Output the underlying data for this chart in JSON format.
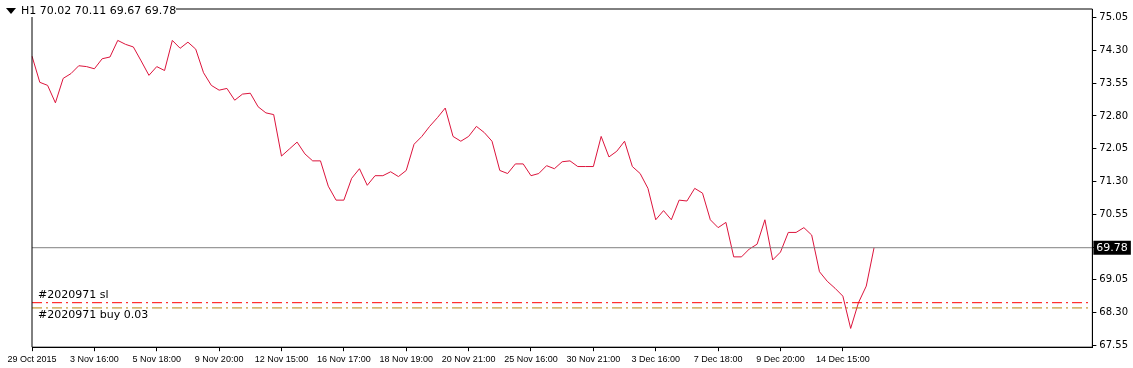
{
  "chart_data": {
    "type": "line",
    "title": "H1  70.02 70.11 69.67 69.78",
    "categories": [
      "29 Oct 2015",
      null,
      null,
      null,
      null,
      null,
      null,
      null,
      "3 Nov 16:00",
      null,
      null,
      null,
      null,
      null,
      null,
      null,
      "5 Nov 18:00",
      null,
      null,
      null,
      null,
      null,
      null,
      null,
      "9 Nov 20:00",
      null,
      null,
      null,
      null,
      null,
      null,
      null,
      "12 Nov 15:00",
      null,
      null,
      null,
      null,
      null,
      null,
      null,
      "16 Nov 17:00",
      null,
      null,
      null,
      null,
      null,
      null,
      null,
      "18 Nov 19:00",
      null,
      null,
      null,
      null,
      null,
      null,
      null,
      "20 Nov 21:00",
      null,
      null,
      null,
      null,
      null,
      null,
      null,
      "25 Nov 16:00",
      null,
      null,
      null,
      null,
      null,
      null,
      null,
      "30 Nov 21:00",
      null,
      null,
      null,
      null,
      null,
      null,
      null,
      "3 Dec 16:00",
      null,
      null,
      null,
      null,
      null,
      null,
      null,
      "7 Dec 18:00",
      null,
      null,
      null,
      null,
      null,
      null,
      null,
      "9 Dec 20:00",
      null,
      null,
      null,
      null,
      null,
      null,
      null,
      "14 Dec 15:00",
      null,
      null,
      null,
      null,
      null,
      null,
      null,
      null,
      null,
      null,
      null,
      null,
      null,
      null,
      null,
      null,
      null,
      null,
      null,
      null,
      null,
      null,
      null,
      null,
      null,
      null,
      null,
      null,
      null,
      null,
      null,
      null
    ],
    "series": [
      {
        "color": "#dc143c",
        "values": [
          74.17,
          73.57,
          73.5,
          73.1,
          73.66,
          73.77,
          73.95,
          73.93,
          73.88,
          74.11,
          74.15,
          74.53,
          74.44,
          74.38,
          74.06,
          73.73,
          73.93,
          73.84,
          74.53,
          74.35,
          74.49,
          74.33,
          73.79,
          73.5,
          73.39,
          73.43,
          73.16,
          73.3,
          73.32,
          73.01,
          72.87,
          72.83,
          71.88,
          72.04,
          72.2,
          71.93,
          71.77,
          71.77,
          71.19,
          70.87,
          70.87,
          71.37,
          71.59,
          71.21,
          71.43,
          71.43,
          71.52,
          71.41,
          71.55,
          72.15,
          72.33,
          72.56,
          72.76,
          72.98,
          72.33,
          72.22,
          72.33,
          72.56,
          72.42,
          72.22,
          71.55,
          71.48,
          71.7,
          71.7,
          71.43,
          71.48,
          71.66,
          71.59,
          71.75,
          71.77,
          71.64,
          71.64,
          71.64,
          72.33,
          71.86,
          71.99,
          72.22,
          71.64,
          71.48,
          71.14,
          70.42,
          70.63,
          70.42,
          70.87,
          70.85,
          71.14,
          71.03,
          70.42,
          70.24,
          70.36,
          69.57,
          69.57,
          69.75,
          69.86,
          70.42,
          69.5,
          69.68,
          70.13,
          70.13,
          70.24,
          70.07,
          69.23,
          69.01,
          68.85,
          68.67,
          67.93,
          68.52,
          68.9,
          69.78,
          null,
          null,
          null,
          null,
          null,
          null,
          null,
          null,
          null,
          null,
          null,
          null,
          null,
          null,
          null,
          null,
          null,
          null,
          null,
          null,
          null,
          null,
          null,
          null,
          null,
          null,
          null,
          null
        ]
      }
    ],
    "ylim": [
      67.5,
      75.25
    ],
    "yticks": [
      67.55,
      {
        "value": 68.3,
        "label": "68.30"
      },
      69.05,
      69.78,
      70.55,
      {
        "value": 71.3,
        "label": "71.30"
      },
      72.05,
      {
        "value": 72.8,
        "label": "72.80"
      },
      73.55,
      {
        "value": 74.3,
        "label": "74.30"
      },
      75.05
    ],
    "ref_lines": [
      {
        "axis": "y",
        "value": 69.78,
        "label": "69.78",
        "color": "#808080"
      },
      {
        "axis": "y",
        "value": 68.52,
        "label": "#2020971 sl",
        "color": "#ff0000",
        "line_style": "dashed"
      },
      {
        "axis": "y",
        "value": 68.4,
        "label": "#2020971 buy 0.03",
        "color": "#b8860b",
        "line_style": "dashed"
      }
    ],
    "grid": false,
    "legend": false,
    "marker": "none"
  }
}
